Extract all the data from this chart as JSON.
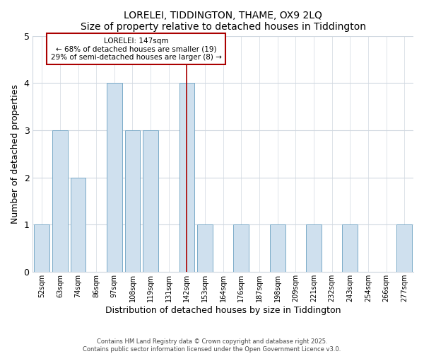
{
  "title": "LORELEI, TIDDINGTON, THAME, OX9 2LQ",
  "subtitle": "Size of property relative to detached houses in Tiddington",
  "xlabel": "Distribution of detached houses by size in Tiddington",
  "ylabel": "Number of detached properties",
  "bin_labels": [
    "52sqm",
    "63sqm",
    "74sqm",
    "86sqm",
    "97sqm",
    "108sqm",
    "119sqm",
    "131sqm",
    "142sqm",
    "153sqm",
    "164sqm",
    "176sqm",
    "187sqm",
    "198sqm",
    "209sqm",
    "221sqm",
    "232sqm",
    "243sqm",
    "254sqm",
    "266sqm",
    "277sqm"
  ],
  "bar_heights": [
    1,
    3,
    2,
    0,
    4,
    3,
    3,
    0,
    4,
    1,
    0,
    1,
    0,
    1,
    0,
    1,
    0,
    1,
    0,
    0,
    1
  ],
  "bar_color": "#cfe0ee",
  "bar_edgecolor": "#7aaac8",
  "highlight_index": 8,
  "highlight_line_color": "#aa0000",
  "annotation_title": "LORELEI: 147sqm",
  "annotation_line1": "← 68% of detached houses are smaller (19)",
  "annotation_line2": "29% of semi-detached houses are larger (8) →",
  "annotation_box_edgecolor": "#aa0000",
  "annotation_box_facecolor": "#ffffff",
  "ylim": [
    0,
    5
  ],
  "yticks": [
    0,
    1,
    2,
    3,
    4,
    5
  ],
  "plot_bg_color": "#ffffff",
  "fig_bg_color": "#ffffff",
  "grid_color": "#d0d8e0",
  "footer_line1": "Contains HM Land Registry data © Crown copyright and database right 2025.",
  "footer_line2": "Contains public sector information licensed under the Open Government Licence v3.0."
}
